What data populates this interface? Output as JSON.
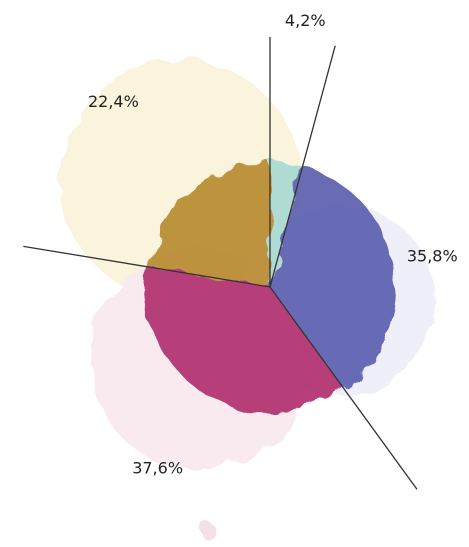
{
  "chart_data": {
    "type": "pie",
    "categories": [
      null,
      null,
      null,
      null
    ],
    "values": [
      4.2,
      35.8,
      37.6,
      22.4
    ],
    "value_labels": [
      "4,2%",
      "35,8%",
      "37,6%",
      "22,4%"
    ],
    "colors": [
      "#a9d9d2",
      "#5b5fae",
      "#b1306f",
      "#b88a30"
    ],
    "start_angle": 0
  }
}
